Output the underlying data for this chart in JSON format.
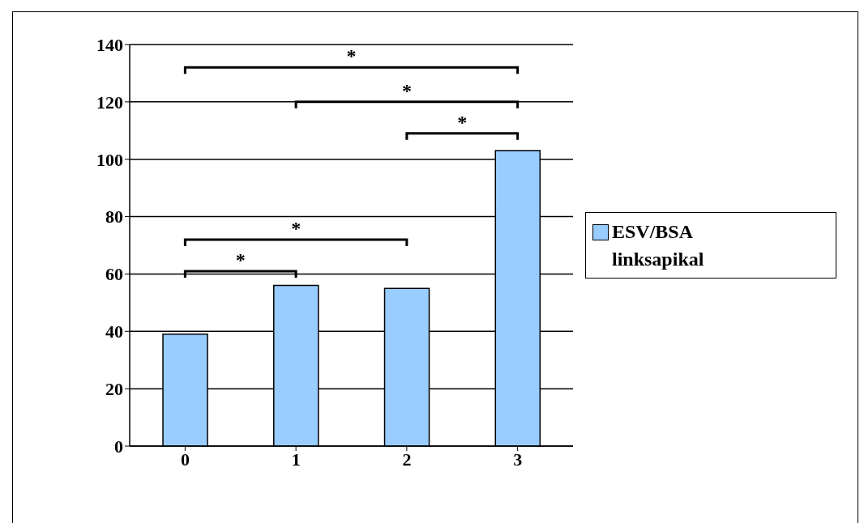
{
  "chart_data": {
    "type": "bar",
    "categories": [
      "0",
      "1",
      "2",
      "3"
    ],
    "series": [
      {
        "name": "ESV/BSA linksapikal",
        "color": "#99ccff",
        "values": [
          39,
          56,
          55,
          103
        ]
      }
    ],
    "ylim": [
      0,
      140
    ],
    "yticks": [
      0,
      20,
      40,
      60,
      80,
      100,
      120,
      140
    ],
    "grid": "y",
    "legend": "right",
    "annotations": [
      "*",
      "*",
      "*",
      "*",
      "*"
    ]
  }
}
